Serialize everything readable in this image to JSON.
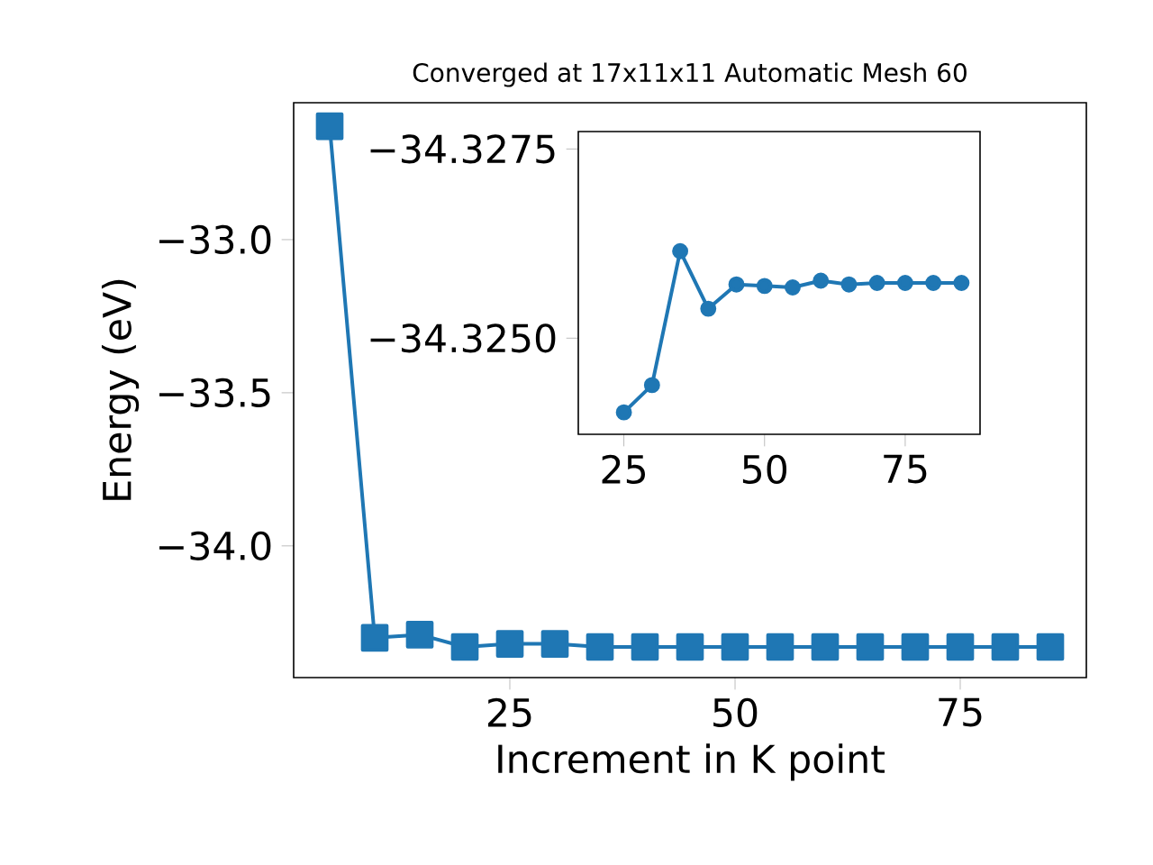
{
  "chart_data": [
    {
      "type": "line",
      "title": "Converged at 17x11x11 Automatic Mesh 60",
      "xlabel": "Increment in K point",
      "ylabel": "Energy (eV)",
      "color": "#1f77b4",
      "marker": "square",
      "x": [
        5,
        10,
        15,
        20,
        25,
        30,
        35,
        40,
        45,
        50,
        55,
        60,
        65,
        70,
        75,
        80,
        85
      ],
      "values": [
        -32.63,
        -34.3,
        -34.29,
        -34.33,
        -34.32,
        -34.32,
        -34.33,
        -34.33,
        -34.33,
        -34.33,
        -34.33,
        -34.33,
        -34.33,
        -34.33,
        -34.33,
        -34.33,
        -34.33
      ],
      "xlim": [
        1,
        89
      ],
      "ylim": [
        -34.43,
        -32.553
      ],
      "xticks": [
        25,
        50,
        75
      ],
      "yticks": [
        {
          "value": -34.0,
          "label": "−34.0"
        },
        {
          "value": -33.5,
          "label": "−33.5"
        },
        {
          "value": -33.0,
          "label": "−33.0"
        }
      ]
    },
    {
      "type": "line",
      "color": "#1f77b4",
      "marker": "circle",
      "x": [
        25,
        30,
        35,
        40,
        45,
        50,
        55,
        60,
        65,
        70,
        75,
        80,
        85
      ],
      "values": [
        -34.32402,
        -34.32438,
        -34.32615,
        -34.32539,
        -34.32571,
        -34.32569,
        -34.32567,
        -34.32576,
        -34.32571,
        -34.32573,
        -34.32573,
        -34.32573,
        -34.32573
      ],
      "xlim": [
        16.9,
        88.3
      ],
      "ylim": [
        -34.32373,
        -34.32773
      ],
      "xticks": [
        25,
        50,
        75
      ],
      "yticks": [
        {
          "value": -34.3275,
          "label": "−34.3275"
        },
        {
          "value": -34.325,
          "label": "−34.3250"
        }
      ]
    }
  ]
}
